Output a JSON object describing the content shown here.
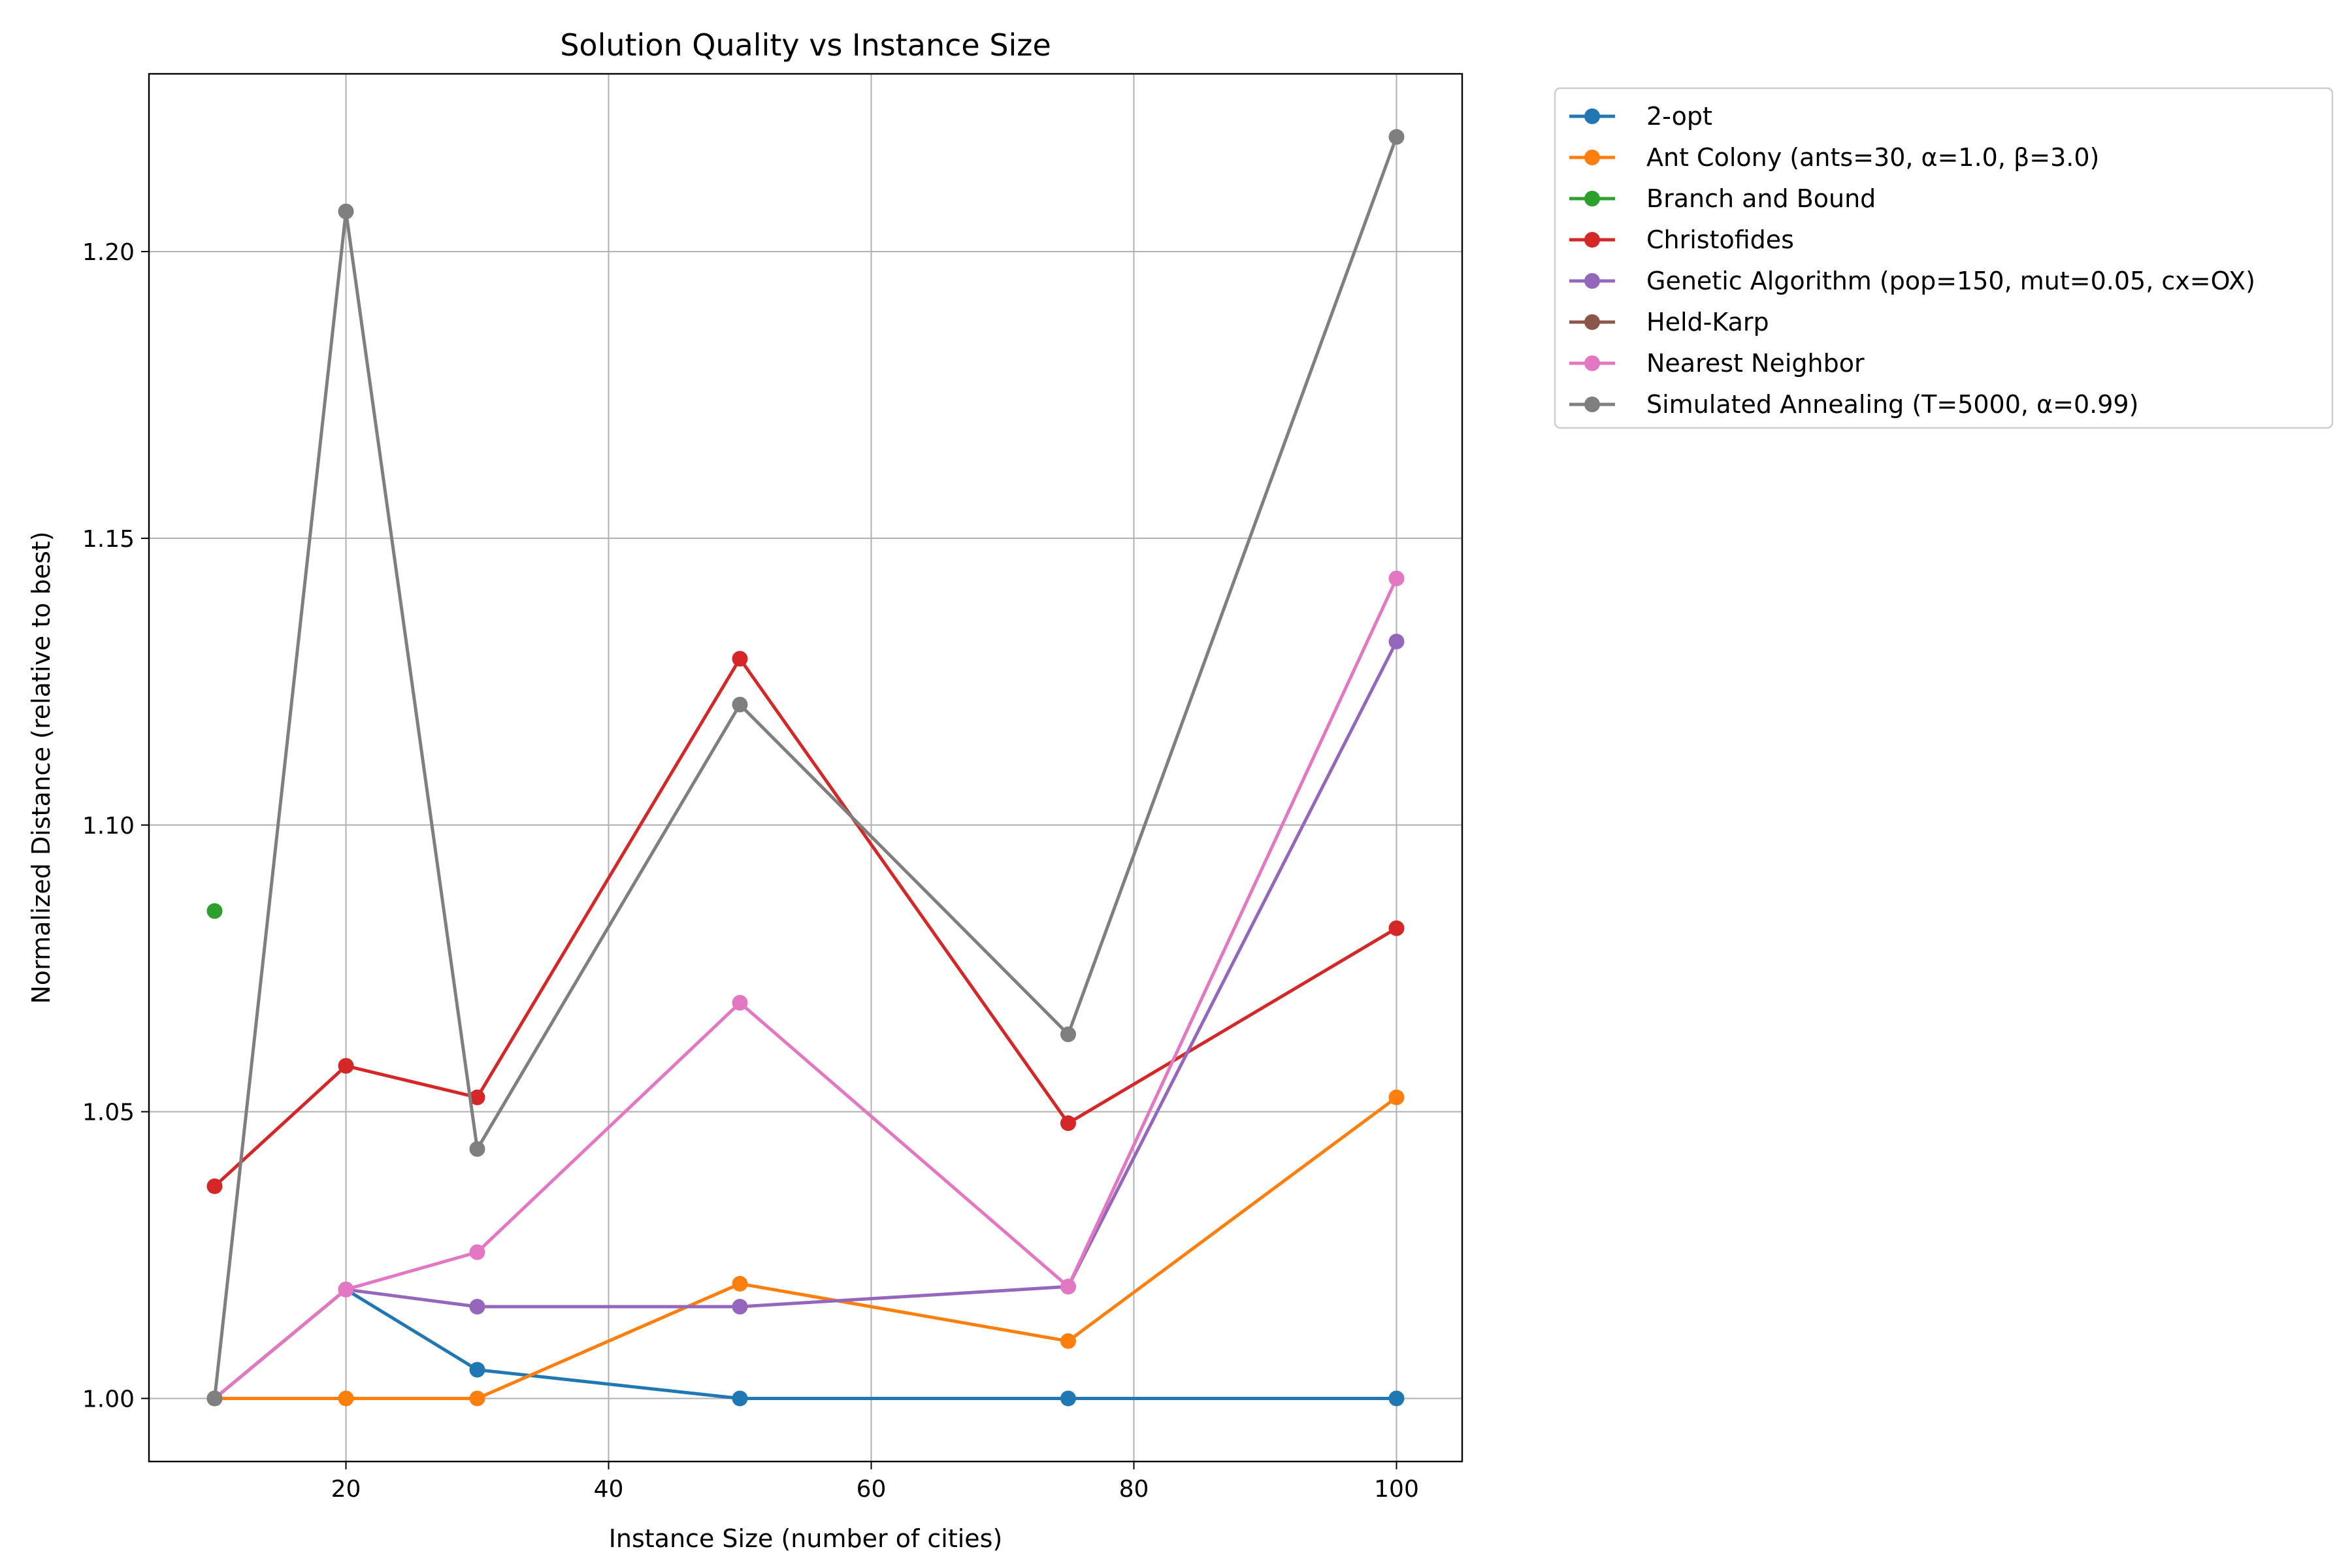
{
  "chart_data": {
    "type": "line",
    "title": "Solution Quality vs Instance Size",
    "xlabel": "Instance Size (number of cities)",
    "ylabel": "Normalized Distance (relative to best)",
    "xlim": [
      5,
      105
    ],
    "ylim": [
      0.989,
      1.231
    ],
    "xticks": [
      20,
      40,
      60,
      80,
      100
    ],
    "yticks": [
      1.0,
      1.05,
      1.1,
      1.15,
      1.2
    ],
    "ytick_labels": [
      "1.00",
      "1.05",
      "1.10",
      "1.15",
      "1.20"
    ],
    "grid": true,
    "legend_position": "outside-top-right",
    "series": [
      {
        "name": "2-opt",
        "color": "#1f77b4",
        "points": [
          [
            10,
            1.0
          ],
          [
            20,
            1.019
          ],
          [
            30,
            1.005
          ],
          [
            50,
            1.0
          ],
          [
            75,
            1.0
          ],
          [
            100,
            1.0
          ]
        ]
      },
      {
        "name": "Ant Colony (ants=30, α=1.0, β=3.0)",
        "color": "#ff7f0e",
        "points": [
          [
            10,
            1.0
          ],
          [
            20,
            1.0
          ],
          [
            30,
            1.0
          ],
          [
            50,
            1.02
          ],
          [
            75,
            1.01
          ],
          [
            100,
            1.0525
          ]
        ]
      },
      {
        "name": "Branch and Bound",
        "color": "#2ca02c",
        "points": [
          [
            10,
            1.085
          ]
        ]
      },
      {
        "name": "Christofides",
        "color": "#d62728",
        "points": [
          [
            10,
            1.037
          ],
          [
            20,
            1.058
          ],
          [
            30,
            1.0525
          ],
          [
            50,
            1.129
          ],
          [
            75,
            1.048
          ],
          [
            100,
            1.082
          ]
        ]
      },
      {
        "name": "Genetic Algorithm (pop=150, mut=0.05, cx=OX)",
        "color": "#9467bd",
        "points": [
          [
            10,
            1.0
          ],
          [
            20,
            1.019
          ],
          [
            30,
            1.016
          ],
          [
            50,
            1.016
          ],
          [
            75,
            1.0195
          ],
          [
            100,
            1.132
          ]
        ]
      },
      {
        "name": "Held-Karp",
        "color": "#8c564b",
        "points": []
      },
      {
        "name": "Nearest Neighbor",
        "color": "#e377c2",
        "points": [
          [
            10,
            1.0
          ],
          [
            20,
            1.019
          ],
          [
            30,
            1.0255
          ],
          [
            50,
            1.069
          ],
          [
            75,
            1.0195
          ],
          [
            100,
            1.143
          ]
        ]
      },
      {
        "name": "Simulated Annealing (T=5000, α=0.99)",
        "color": "#7f7f7f",
        "points": [
          [
            10,
            1.0
          ],
          [
            20,
            1.207
          ],
          [
            30,
            1.0435
          ],
          [
            50,
            1.121
          ],
          [
            75,
            1.0635
          ],
          [
            100,
            1.22
          ]
        ]
      }
    ]
  }
}
